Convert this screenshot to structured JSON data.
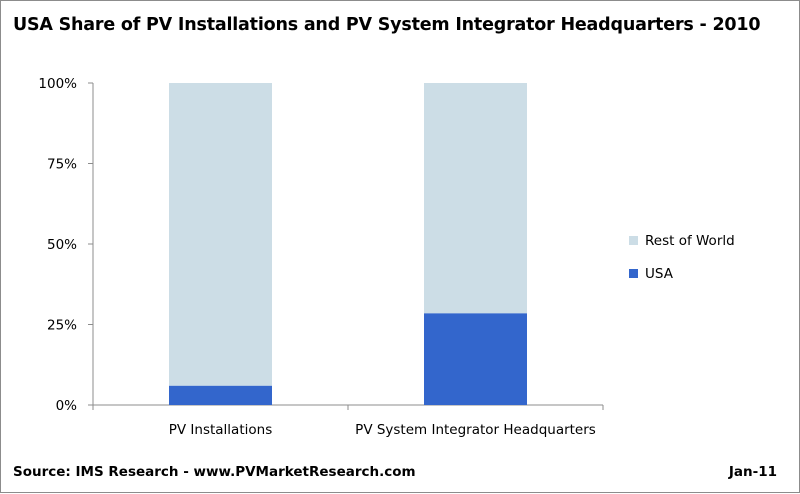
{
  "chart_data": {
    "type": "bar",
    "stacked": true,
    "title": "USA Share of PV Installations and PV System Integrator Headquarters - 2010",
    "categories": [
      "PV Installations",
      "PV System Integrator Headquarters"
    ],
    "series": [
      {
        "name": "USA",
        "color": "#3366cc",
        "values": [
          6,
          28.5
        ]
      },
      {
        "name": "Rest of World",
        "color": "#ccdde6",
        "values": [
          94,
          71.5
        ]
      }
    ],
    "yticks": [
      "0%",
      "25%",
      "50%",
      "75%",
      "100%"
    ],
    "ylim": [
      0,
      100
    ],
    "legend": "right",
    "grid": false
  },
  "footer": {
    "source": "Source: IMS Research - www.PVMarketResearch.com",
    "date": "Jan-11"
  }
}
